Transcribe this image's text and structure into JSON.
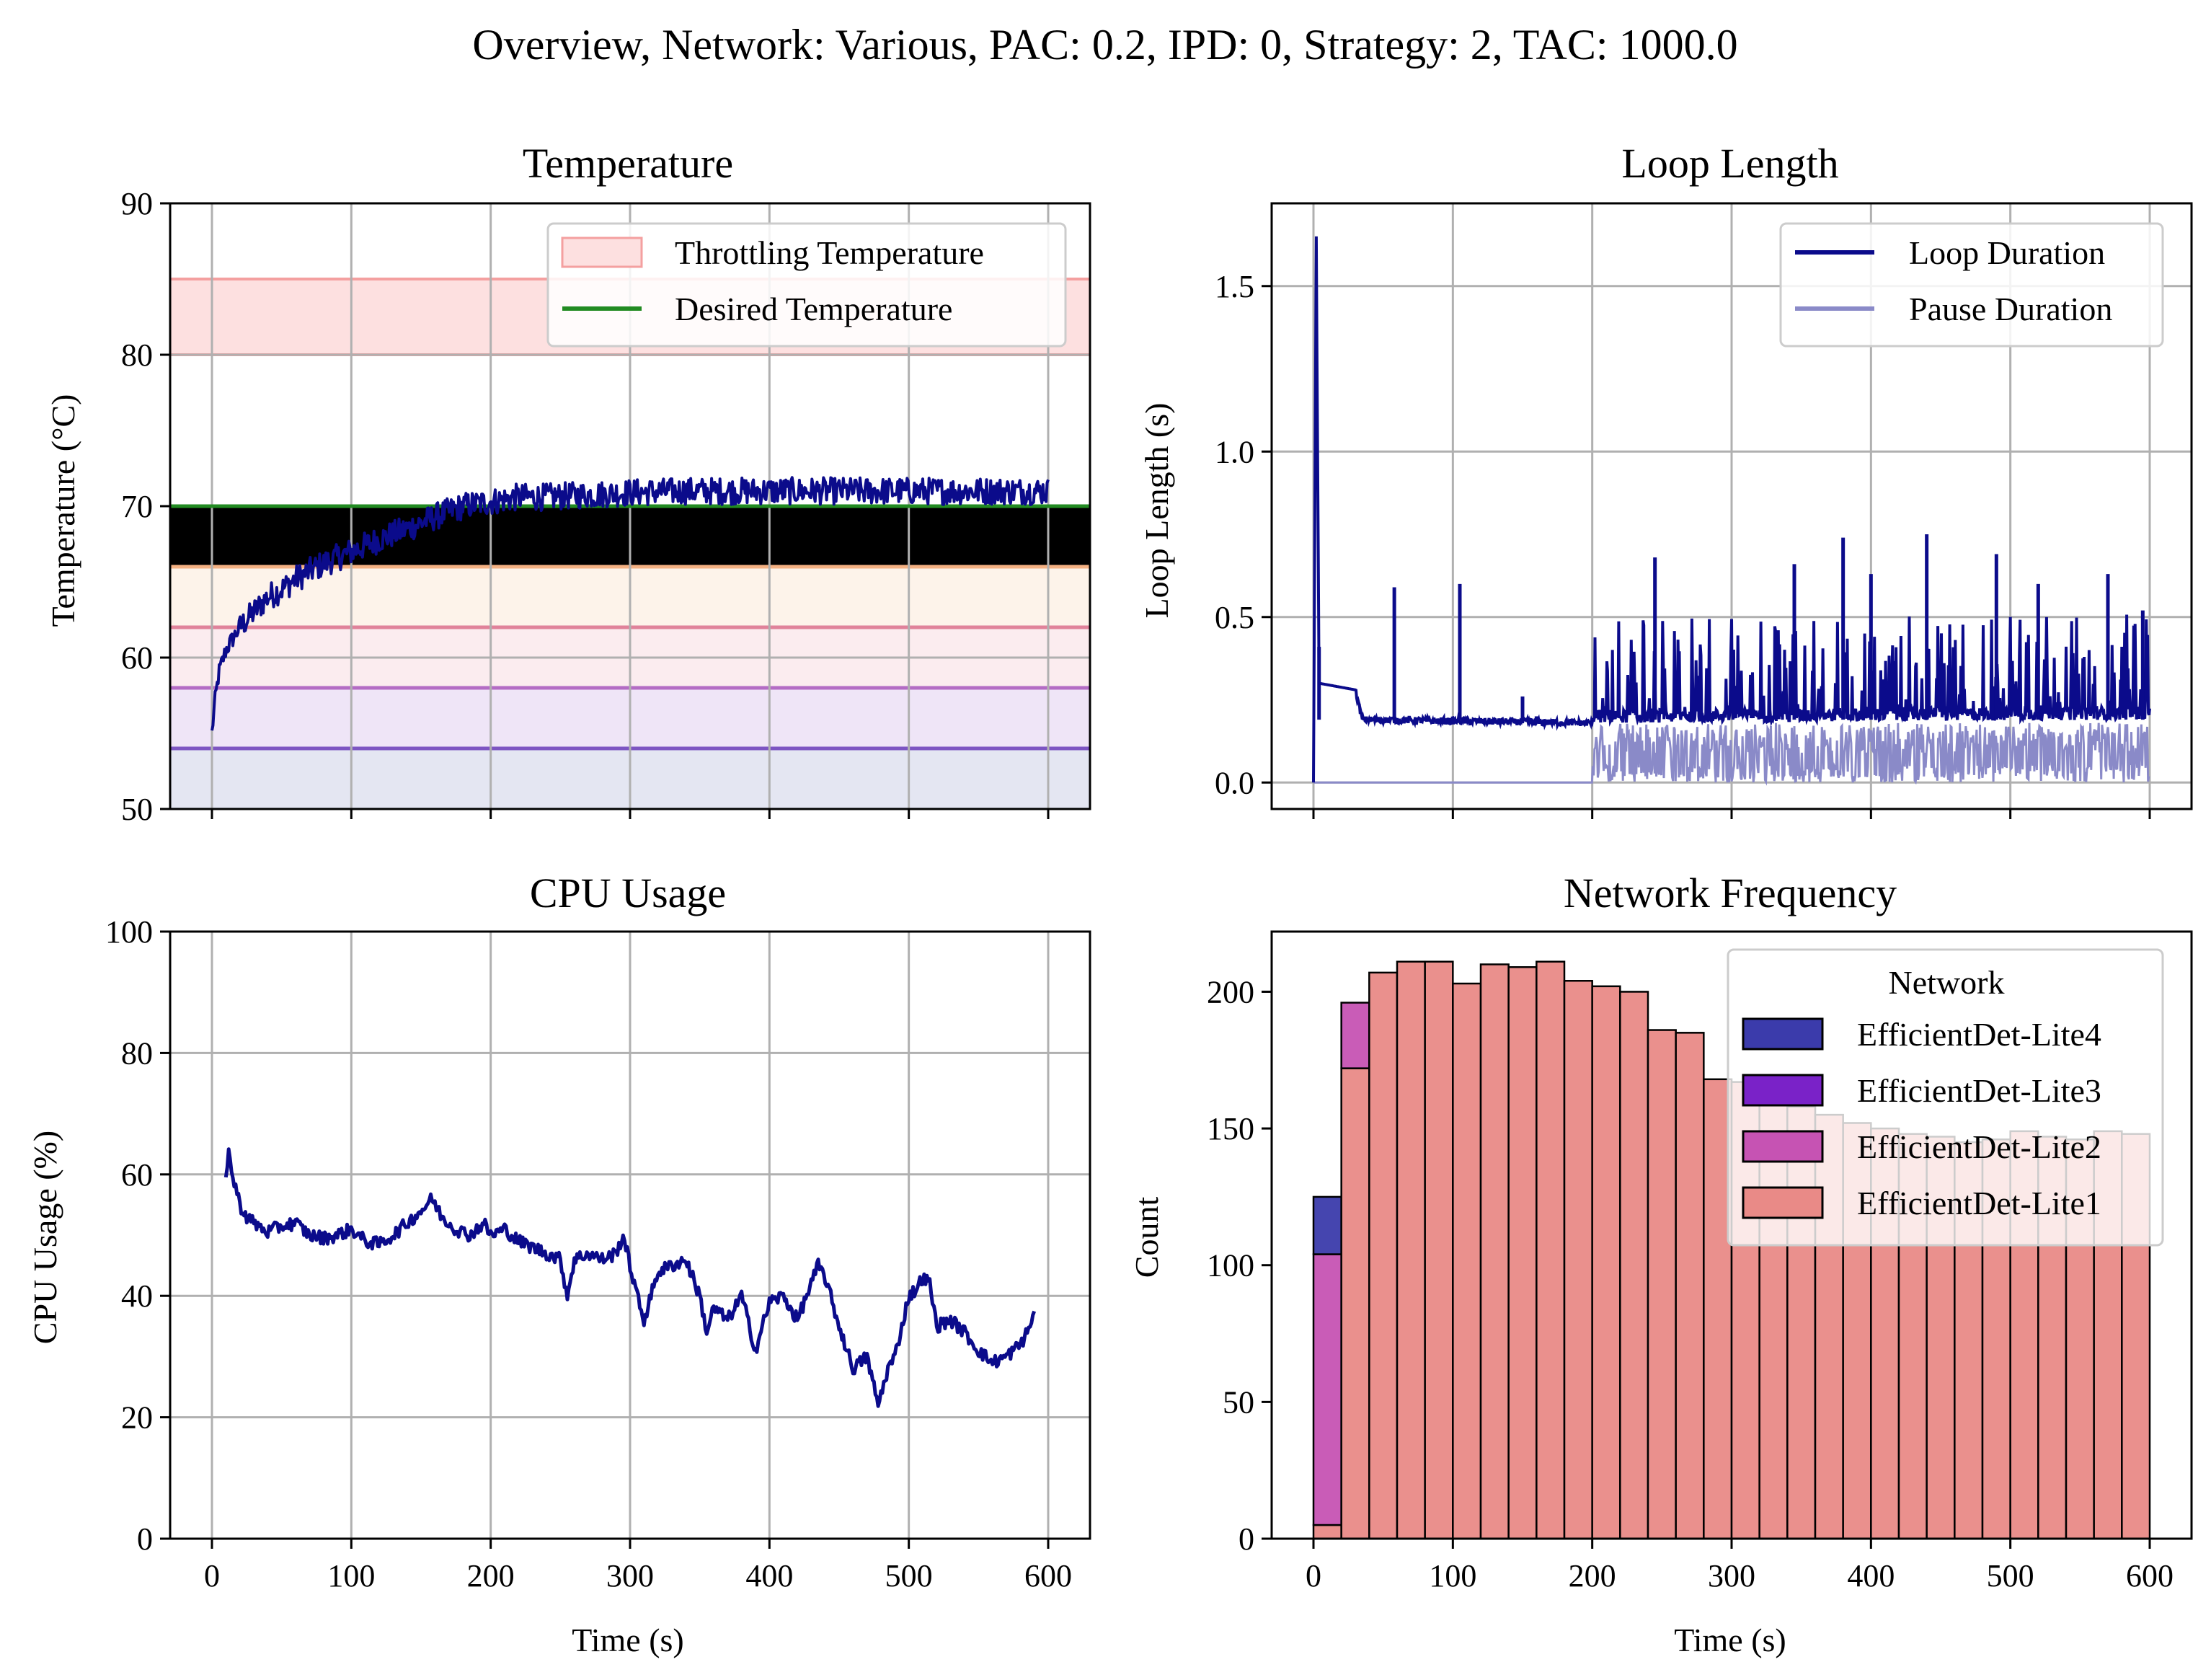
{
  "suptitle": "Overview, Network: Various, PAC: 0.2, IPD: 0, Strategy: 2, TAC: 1000.0",
  "panels": {
    "temperature": {
      "title": "Temperature",
      "ylabel": "Temperature (°C)",
      "legend": [
        "Throttling Temperature",
        "Desired Temperature"
      ]
    },
    "loop": {
      "title": "Loop Length",
      "ylabel": "Loop Length (s)",
      "legend": [
        "Loop Duration",
        "Pause Duration"
      ]
    },
    "cpu": {
      "title": "CPU Usage",
      "ylabel": "CPU Usage (%)",
      "xlabel": "Time (s)"
    },
    "network": {
      "title": "Network Frequency",
      "ylabel": "Count",
      "xlabel": "Time (s)",
      "legend_title": "Network",
      "legend": [
        "EfficientDet-Lite4",
        "EfficientDet-Lite3",
        "EfficientDet-Lite2",
        "EfficientDet-Lite1"
      ]
    }
  },
  "colors": {
    "primary_line": "#0b0b8b",
    "pause_line": "#8a8ac8",
    "desired": "#228b22",
    "throttle_fill": "#fde0e0",
    "throttle_line": "#f4a0a0",
    "lite4": "#3b3bab",
    "lite3": "#7a22c8",
    "lite2": "#c653b3",
    "lite1": "#e98a87",
    "band_lines": [
      "#7d55c2",
      "#b36cc4",
      "#e0829a",
      "#f4b183"
    ],
    "band_fills": [
      "#e4e6f2",
      "#efe5f7",
      "#fbecef",
      "#fdf3ea"
    ]
  },
  "chart_data": [
    {
      "panel": "temperature",
      "type": "line",
      "title": "Temperature",
      "xlabel": "",
      "ylabel": "Temperature (°C)",
      "xlim": [
        -30,
        630
      ],
      "ylim": [
        50,
        90
      ],
      "xticks": [
        0,
        100,
        200,
        300,
        400,
        500,
        600
      ],
      "yticks": [
        50,
        60,
        70,
        80,
        90
      ],
      "grid": true,
      "legend_position": "top-right",
      "throttling_band": [
        80,
        85
      ],
      "desired_temperature": 70,
      "reference_lines": [
        54,
        58,
        62,
        66
      ],
      "series": [
        {
          "name": "Temperature",
          "x": [
            0,
            2,
            5,
            10,
            20,
            30,
            40,
            50,
            60,
            80,
            100,
            120,
            140,
            160,
            180,
            200,
            220,
            240,
            260,
            280,
            300,
            340,
            380,
            420,
            460,
            500,
            540,
            560,
            580,
            600
          ],
          "y": [
            55,
            57,
            59,
            60.5,
            62,
            63,
            64,
            64.5,
            65.2,
            66.2,
            67,
            67.8,
            68.5,
            69.3,
            70,
            70.3,
            70.6,
            70.6,
            70.7,
            70.8,
            70.9,
            71.0,
            71.0,
            71.0,
            71.0,
            71.0,
            71.0,
            71.0,
            71.0,
            71.0
          ]
        }
      ]
    },
    {
      "panel": "loop",
      "type": "line",
      "title": "Loop Length",
      "xlabel": "",
      "ylabel": "Loop Length (s)",
      "xlim": [
        -30,
        630
      ],
      "ylim": [
        -0.08,
        1.75
      ],
      "xticks": [
        0,
        100,
        200,
        300,
        400,
        500,
        600
      ],
      "yticks": [
        0.0,
        0.5,
        1.0,
        1.5
      ],
      "ytick_labels": [
        "0.0",
        "0.5",
        "1.0",
        "1.5"
      ],
      "grid": true,
      "legend_position": "top-right",
      "series": [
        {
          "name": "Loop Duration",
          "baseline_segments": [
            [
              0,
              0.0
            ],
            [
              2,
              1.65
            ],
            [
              4,
              0.3
            ],
            [
              30,
              0.28
            ],
            [
              35,
              0.19
            ],
            [
              200,
              0.18
            ],
            [
              600,
              0.19
            ]
          ],
          "spikes": [
            [
              4,
              0.41
            ],
            [
              58,
              0.59
            ],
            [
              105,
              0.6
            ],
            [
              150,
              0.26
            ],
            [
              160,
              0.2
            ],
            [
              245,
              0.68
            ],
            [
              345,
              0.66
            ],
            [
              380,
              0.74
            ],
            [
              400,
              0.63
            ],
            [
              440,
              0.75
            ],
            [
              490,
              0.69
            ],
            [
              520,
              0.6
            ],
            [
              570,
              0.63
            ],
            [
              595,
              0.52
            ]
          ]
        },
        {
          "name": "Pause Duration",
          "baseline": 0.0,
          "activity_start": 160,
          "max": 0.18
        }
      ]
    },
    {
      "panel": "cpu",
      "type": "line",
      "title": "CPU Usage",
      "xlabel": "Time (s)",
      "ylabel": "CPU Usage (%)",
      "xlim": [
        -30,
        630
      ],
      "ylim": [
        0,
        100
      ],
      "xticks": [
        0,
        100,
        200,
        300,
        400,
        500,
        600
      ],
      "yticks": [
        0,
        20,
        40,
        60,
        80,
        100
      ],
      "grid": true,
      "series": [
        {
          "name": "CPU Usage",
          "x": [
            10,
            12,
            14,
            17,
            20,
            25,
            30,
            40,
            50,
            60,
            70,
            80,
            90,
            100,
            110,
            120,
            130,
            140,
            150,
            158,
            165,
            175,
            185,
            195,
            200,
            210,
            220,
            230,
            240,
            250,
            255,
            260,
            270,
            280,
            290,
            295,
            300,
            305,
            310,
            320,
            330,
            340,
            350,
            355,
            360,
            370,
            380,
            390,
            400,
            410,
            420,
            430,
            435,
            440,
            450,
            460,
            470,
            478,
            485,
            490,
            500,
            505,
            510,
            515,
            520,
            530,
            540,
            550,
            560,
            570,
            580,
            585,
            590
          ],
          "y": [
            59,
            65,
            60,
            58,
            55,
            53,
            52,
            50.5,
            51.5,
            52,
            50,
            49.5,
            50,
            51,
            49,
            48.5,
            50,
            52,
            54,
            56,
            53,
            51,
            50,
            52,
            50,
            51,
            49,
            48,
            47,
            46,
            40,
            46,
            47,
            46,
            47,
            50,
            45,
            40,
            36,
            44,
            45,
            46,
            40,
            34,
            38,
            36,
            40,
            31,
            39,
            40,
            36,
            42,
            45,
            43,
            35,
            28,
            30,
            22,
            28,
            30,
            40,
            41,
            43,
            42,
            35,
            36,
            34,
            31,
            29,
            30,
            32,
            34,
            37
          ]
        }
      ]
    },
    {
      "panel": "network",
      "type": "bar",
      "title": "Network Frequency",
      "xlabel": "Time (s)",
      "ylabel": "Count",
      "xlim": [
        -30,
        630
      ],
      "ylim": [
        0,
        222
      ],
      "xticks": [
        0,
        100,
        200,
        300,
        400,
        500,
        600
      ],
      "yticks": [
        0,
        50,
        100,
        150,
        200
      ],
      "grid": false,
      "stacked": true,
      "bin_start": 0,
      "bin_width": 20,
      "legend_title": "Network",
      "legend_position": "top-right",
      "series": [
        {
          "name": "EfficientDet-Lite1",
          "values": [
            5,
            172,
            207,
            211,
            211,
            203,
            210,
            209,
            211,
            204,
            202,
            200,
            186,
            185,
            168,
            167,
            160,
            158,
            155,
            152,
            150,
            148,
            147,
            145,
            146,
            149,
            147,
            146,
            149,
            148
          ]
        },
        {
          "name": "EfficientDet-Lite2",
          "values": [
            99,
            24,
            0,
            0,
            0,
            0,
            0,
            0,
            0,
            0,
            0,
            0,
            0,
            0,
            0,
            0,
            0,
            0,
            0,
            0,
            0,
            0,
            0,
            0,
            0,
            0,
            0,
            0,
            0,
            0
          ]
        },
        {
          "name": "EfficientDet-Lite3",
          "values": [
            0,
            0,
            0,
            0,
            0,
            0,
            0,
            0,
            0,
            0,
            0,
            0,
            0,
            0,
            0,
            0,
            0,
            0,
            0,
            0,
            0,
            0,
            0,
            0,
            0,
            0,
            0,
            0,
            0,
            0
          ]
        },
        {
          "name": "EfficientDet-Lite4",
          "values": [
            21,
            0,
            0,
            0,
            0,
            0,
            0,
            0,
            0,
            0,
            0,
            0,
            0,
            0,
            0,
            0,
            0,
            0,
            0,
            0,
            0,
            0,
            0,
            0,
            0,
            0,
            0,
            0,
            0,
            0
          ]
        }
      ]
    }
  ]
}
